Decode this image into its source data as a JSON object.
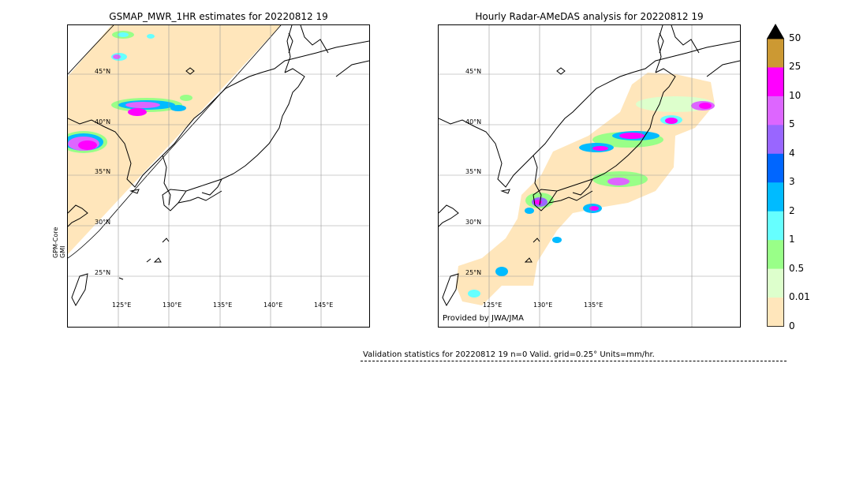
{
  "left_panel": {
    "title": "GSMAP_MWR_1HR estimates for 20220812 19",
    "side_label_1": "GPM-Core",
    "side_label_2": "GMI",
    "lat_labels": [
      "45°N",
      "40°N",
      "35°N",
      "30°N",
      "25°N"
    ],
    "lon_labels": [
      "125°E",
      "130°E",
      "135°E",
      "140°E",
      "145°E"
    ]
  },
  "right_panel": {
    "title": "Hourly Radar-AMeDAS analysis for 20220812 19",
    "lat_labels": [
      "45°N",
      "40°N",
      "35°N",
      "30°N",
      "25°N"
    ],
    "lon_labels": [
      "125°E",
      "130°E",
      "135°E"
    ],
    "credit": "Provided by JWA/JMA"
  },
  "colorbar": {
    "labels": [
      "50",
      "25",
      "10",
      "5",
      "4",
      "3",
      "2",
      "1",
      "0.5",
      "0.01",
      "0"
    ],
    "colors": [
      "#cc9933",
      "#ff00ff",
      "#dd66ff",
      "#9966ff",
      "#0066ff",
      "#00bbff",
      "#66ffff",
      "#99ff88",
      "#ddffcc",
      "#ffe6bb"
    ],
    "arrow_color": "#000000"
  },
  "stats": {
    "text": "Validation statistics for 20220812 19  n=0 Valid. grid=0.25° Units=mm/hr."
  }
}
